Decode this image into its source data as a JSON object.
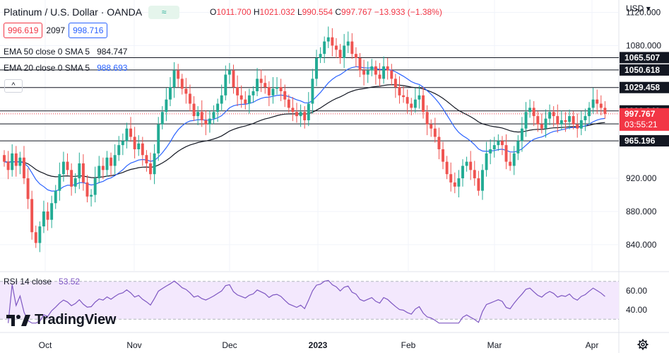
{
  "header": {
    "title": "Platinum / U.S. Dollar · OANDA",
    "badge": "≈",
    "ohlc": {
      "o_label": "O",
      "o": "1011.700",
      "h_label": "H",
      "h": "1021.032",
      "l_label": "L",
      "l": "990.554",
      "c_label": "C",
      "c": "997.767",
      "change": "−13.933 (−1.38%)"
    },
    "sell": "996.619",
    "spread": "2097",
    "buy": "998.716",
    "currency": "USD",
    "currency_caret": "▾"
  },
  "indicators": [
    {
      "label": "EMA 50 close 0 SMA 5",
      "value": "984.747"
    },
    {
      "label": "EMA 20 close 0 SMA 5",
      "value": "988.693"
    }
  ],
  "collapse_glyph": "^",
  "rsi": {
    "label": "RSI 14 close",
    "value": "53.52"
  },
  "logo": {
    "text": "TradingView"
  },
  "colors": {
    "up": "#22ab94",
    "down": "#ef5350",
    "ema20": "#2962ff",
    "ema50": "#131722",
    "rsi_line": "#7e57c2",
    "rsi_band": "#f3e8fd",
    "last_price": "#f23645"
  },
  "chart_data": {
    "type": "candlestick",
    "title": "Platinum / U.S. Dollar · OANDA",
    "y_ticks": [
      "1120.000",
      "1080.000",
      "920.000",
      "880.000",
      "840.000"
    ],
    "ylim": [
      810,
      1135
    ],
    "x_ticks": [
      "Oct",
      "Nov",
      "Dec",
      "2023",
      "Feb",
      "Mar",
      "Apr"
    ],
    "closes": [
      940,
      930,
      950,
      935,
      945,
      920,
      895,
      855,
      842,
      862,
      880,
      870,
      890,
      905,
      925,
      940,
      930,
      910,
      920,
      938,
      915,
      898,
      900,
      920,
      935,
      930,
      945,
      935,
      948,
      960,
      965,
      980,
      970,
      955,
      962,
      948,
      938,
      925,
      950,
      985,
      1000,
      1015,
      1030,
      1050,
      1040,
      1028,
      1022,
      1010,
      995,
      1000,
      990,
      985,
      992,
      1000,
      1010,
      1020,
      1045,
      1050,
      1030,
      1020,
      1015,
      1010,
      1020,
      1025,
      1040,
      1035,
      1030,
      1020,
      1028,
      1030,
      1025,
      1015,
      1005,
      1000,
      995,
      1000,
      990,
      1010,
      1040,
      1065,
      1070,
      1085,
      1090,
      1080,
      1075,
      1065,
      1080,
      1085,
      1070,
      1065,
      1050,
      1045,
      1050,
      1055,
      1045,
      1040,
      1055,
      1050,
      1040,
      1030,
      1020,
      1018,
      1010,
      1005,
      1015,
      1020,
      1000,
      985,
      980,
      970,
      955,
      940,
      925,
      915,
      910,
      920,
      935,
      940,
      930,
      920,
      905,
      930,
      950,
      955,
      960,
      965,
      960,
      940,
      935,
      950,
      965,
      980,
      1000,
      1005,
      995,
      985,
      980,
      992,
      1000,
      995,
      985,
      990,
      988,
      995,
      985,
      980,
      990,
      995,
      1005,
      1015,
      1010,
      1005,
      997.767
    ],
    "levels": [
      "1065.507",
      "1050.618",
      "1029.458",
      "1001.246",
      "985.572",
      "965.196"
    ],
    "last_price": "997.767",
    "countdown": "03:55:21",
    "rsi_ticks": [
      "60.00",
      "40.00"
    ],
    "rsi_range": [
      25,
      75
    ],
    "rsi_band": [
      30,
      70
    ]
  }
}
